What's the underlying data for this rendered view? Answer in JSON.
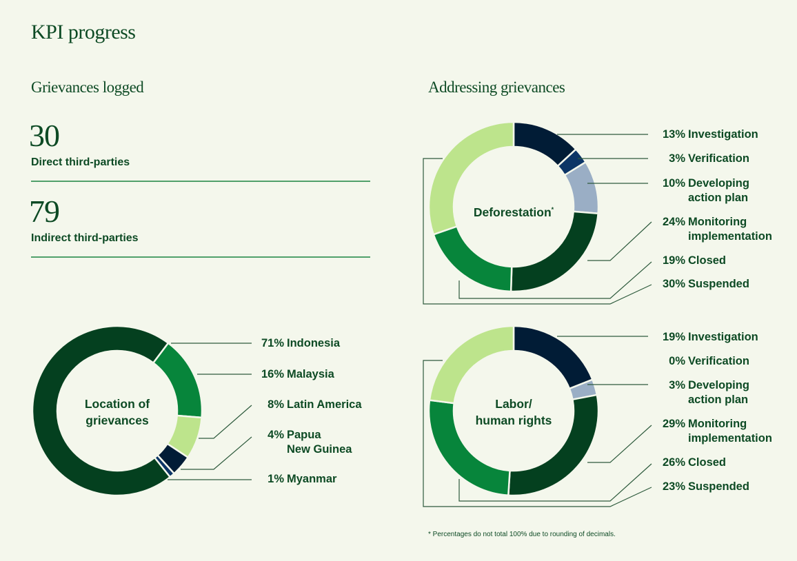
{
  "page": {
    "title": "KPI progress",
    "footnote": "* Percentages do not total 100% due to rounding of decimals."
  },
  "grievances_logged": {
    "heading": "Grievances logged",
    "stats": [
      {
        "value": "30",
        "label": "Direct third-parties"
      },
      {
        "value": "79",
        "label": "Indirect third-parties"
      }
    ]
  },
  "addressing": {
    "heading": "Addressing grievances"
  },
  "colors": {
    "background": "#f4f7ec",
    "text": "#0d4a24",
    "dark_green": "#04401f",
    "mid_green": "#07853b",
    "light_green": "#bde48c",
    "navy": "#011c36",
    "blue": "#0c3566",
    "gray_blue": "#9aaec5",
    "rule": "#4fa06a"
  },
  "chart_data": [
    {
      "type": "pie",
      "title": "Location of grievances",
      "center_label": [
        "Location of",
        "grievances"
      ],
      "categories": [
        "Indonesia",
        "Malaysia",
        "Latin America",
        "Papua New Guinea",
        "Myanmar"
      ],
      "values": [
        71,
        16,
        8,
        4,
        1
      ],
      "legend": [
        {
          "pct": "71%",
          "name": [
            "Indonesia"
          ]
        },
        {
          "pct": "16%",
          "name": [
            "Malaysia"
          ]
        },
        {
          "pct": "8%",
          "name": [
            "Latin America"
          ]
        },
        {
          "pct": "4%",
          "name": [
            "Papua",
            "New Guinea"
          ]
        },
        {
          "pct": "1%",
          "name": [
            "Myanmar"
          ]
        }
      ]
    },
    {
      "type": "pie",
      "title": "Deforestation*",
      "center_label": [
        "Deforestation"
      ],
      "footnote_marker": "*",
      "categories": [
        "Investigation",
        "Verification",
        "Developing action plan",
        "Monitoring implementation",
        "Closed",
        "Suspended"
      ],
      "values": [
        13,
        3,
        10,
        24,
        19,
        30
      ],
      "legend": [
        {
          "pct": "13%",
          "name": [
            "Investigation"
          ]
        },
        {
          "pct": "3%",
          "name": [
            "Verification"
          ]
        },
        {
          "pct": "10%",
          "name": [
            "Developing",
            "action plan"
          ]
        },
        {
          "pct": "24%",
          "name": [
            "Monitoring",
            "implementation"
          ]
        },
        {
          "pct": "19%",
          "name": [
            "Closed"
          ]
        },
        {
          "pct": "30%",
          "name": [
            "Suspended"
          ]
        }
      ]
    },
    {
      "type": "pie",
      "title": "Labor/human rights",
      "center_label": [
        "Labor/",
        "human rights"
      ],
      "categories": [
        "Investigation",
        "Verification",
        "Developing action plan",
        "Monitoring implementation",
        "Closed",
        "Suspended"
      ],
      "values": [
        19,
        0,
        3,
        29,
        26,
        23
      ],
      "legend": [
        {
          "pct": "19%",
          "name": [
            "Investigation"
          ]
        },
        {
          "pct": "0%",
          "name": [
            "Verification"
          ]
        },
        {
          "pct": "3%",
          "name": [
            "Developing",
            "action plan"
          ]
        },
        {
          "pct": "29%",
          "name": [
            "Monitoring",
            "implementation"
          ]
        },
        {
          "pct": "26%",
          "name": [
            "Closed"
          ]
        },
        {
          "pct": "23%",
          "name": [
            "Suspended"
          ]
        }
      ]
    }
  ]
}
